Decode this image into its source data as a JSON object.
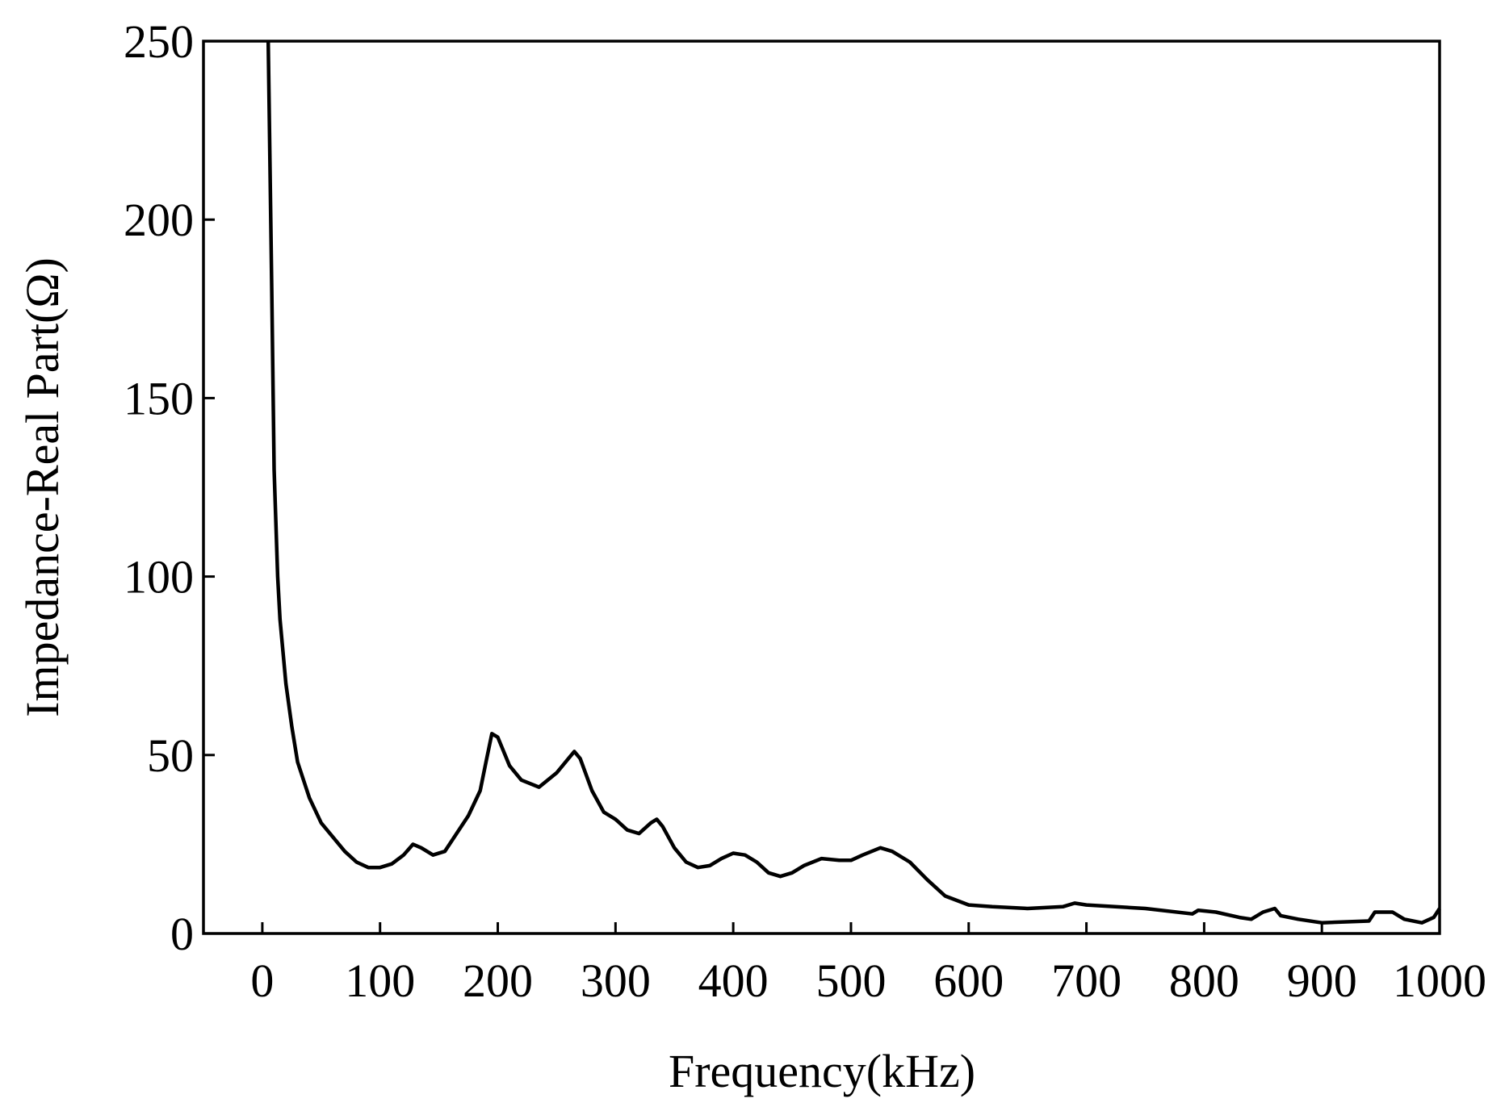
{
  "chart_data": {
    "type": "line",
    "x_label": "Frequency(kHz)",
    "y_label": "Impedance-Real Part(Ω)",
    "x": [
      5,
      8,
      10,
      13,
      15,
      20,
      25,
      30,
      40,
      50,
      60,
      70,
      80,
      90,
      100,
      110,
      120,
      128,
      135,
      145,
      155,
      165,
      175,
      185,
      190,
      195,
      200,
      210,
      220,
      235,
      250,
      260,
      265,
      270,
      280,
      290,
      300,
      310,
      320,
      330,
      335,
      340,
      350,
      360,
      370,
      380,
      390,
      400,
      410,
      420,
      430,
      440,
      450,
      460,
      475,
      490,
      500,
      510,
      525,
      535,
      550,
      565,
      580,
      600,
      620,
      650,
      680,
      690,
      700,
      750,
      790,
      795,
      810,
      830,
      840,
      850,
      860,
      865,
      880,
      900,
      940,
      945,
      960,
      970,
      985,
      995,
      1000
    ],
    "series": [
      {
        "color": "#000000",
        "values": [
          250,
          180,
          130,
          100,
          88,
          70,
          58,
          48,
          38,
          31,
          27,
          23,
          20,
          18.5,
          18.5,
          19.5,
          22,
          25,
          24,
          22,
          23,
          28,
          33,
          40,
          48,
          56,
          55,
          47,
          43,
          41,
          45,
          49,
          51,
          49,
          40,
          34,
          32,
          29,
          28,
          31,
          32,
          30,
          24,
          20,
          18.5,
          19,
          21,
          22.5,
          22,
          20,
          17,
          16,
          17,
          19,
          21,
          20.5,
          20.5,
          22,
          24,
          23,
          20,
          15,
          10.5,
          8,
          7.5,
          7,
          7.5,
          8.5,
          8,
          7,
          5.5,
          6.5,
          6,
          4.5,
          4,
          6,
          7,
          5,
          4,
          3,
          3.5,
          6,
          6,
          4,
          3,
          4.5,
          7
        ]
      }
    ],
    "xlim": [
      -50,
      1000
    ],
    "ylim": [
      0,
      250
    ],
    "xticks": [
      0,
      100,
      200,
      300,
      400,
      500,
      600,
      700,
      800,
      900,
      1000
    ],
    "yticks": [
      0,
      50,
      100,
      150,
      200,
      250
    ]
  }
}
